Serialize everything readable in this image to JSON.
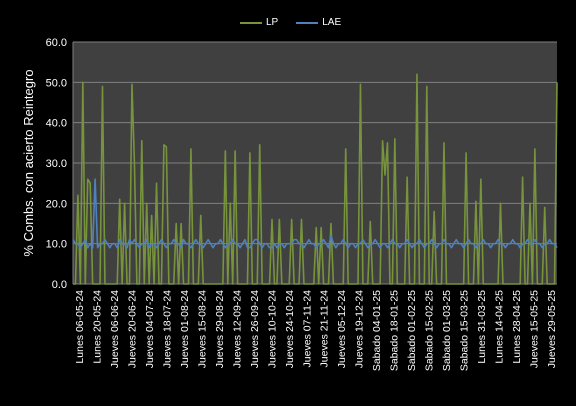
{
  "colors": {
    "plot_bg": "#404040",
    "grid": "#808080",
    "lp": "#77933C",
    "lae": "#4F81BD",
    "text": "#ffffff"
  },
  "chart_data": {
    "type": "line",
    "ylabel": "% Combs. con acierto Reintegro",
    "xlabel": "",
    "title": "",
    "ylim": [
      0,
      60
    ],
    "yticks": [
      "0.0",
      "10.0",
      "20.0",
      "30.0",
      "40.0",
      "50.0",
      "60.0"
    ],
    "grid": "horizontal",
    "legend_position": "top",
    "x_tick_labels": [
      "Lunes 06-05-24",
      "Lunes 20-05-24",
      "Jueves 06-06-24",
      "Jueves 20-06-24",
      "Jueves 04-07-24",
      "Jueves 18-07-24",
      "Jueves 01-08-24",
      "Jueves 15-08-24",
      "Jueves 29-08-24",
      "Jueves 12-09-24",
      "Jueves 26-09-24",
      "Jueves 10-10-24",
      "Jueves 24-10-24",
      "Jueves 07-11-24",
      "Jueves 21-11-24",
      "Jueves 05-12-24",
      "Jueves 19-12-24",
      "Sabado 04-01-25",
      "Sabado 18-01-25",
      "Sabado 01-02-25",
      "Sabado 15-02-25",
      "Sabado 01-03-25",
      "Sabado 15-03-25",
      "Lunes 31-03-25",
      "Lunes 14-04-25",
      "Lunes 28-04-25",
      "Jueves 15-05-25",
      "Jueves 29-05-25"
    ],
    "series": [
      {
        "name": "LP",
        "values": [
          0,
          0,
          22,
          0,
          50,
          0,
          26,
          25,
          0,
          0,
          0,
          0,
          49,
          0,
          0,
          0,
          0,
          0,
          0,
          21,
          0,
          20,
          0,
          0,
          49.5,
          30,
          0,
          0,
          35.5,
          0,
          20,
          0,
          17,
          0,
          25,
          0,
          0,
          34.5,
          34,
          0,
          0,
          0,
          15,
          0,
          15,
          0,
          0,
          0,
          33.5,
          0,
          0,
          0,
          17,
          0,
          0,
          0,
          0,
          0,
          0,
          0,
          0,
          0,
          33,
          0,
          20,
          0,
          33,
          0,
          0,
          0,
          0,
          0,
          32.5,
          0,
          0,
          0,
          34.5,
          0,
          0,
          0,
          0,
          16,
          0,
          0,
          16,
          0,
          0,
          0,
          0,
          16,
          0,
          0,
          0,
          16,
          0,
          0,
          0,
          0,
          0,
          14,
          0,
          14,
          0,
          0,
          0,
          15,
          0,
          0,
          0,
          0,
          0,
          33.5,
          0,
          0,
          0,
          0,
          0,
          49.5,
          0,
          0,
          0,
          15.5,
          0,
          0,
          0,
          0,
          35.5,
          27,
          35,
          0,
          0,
          36,
          0,
          0,
          0,
          0,
          26.5,
          0,
          0,
          0,
          52,
          0,
          0,
          0,
          49,
          0,
          0,
          18,
          0,
          0,
          0,
          35,
          0,
          0,
          0,
          0,
          0,
          0,
          0,
          0,
          32.5,
          0,
          0,
          0,
          20.5,
          0,
          26,
          0,
          0,
          0,
          0,
          0,
          0,
          0,
          20,
          0,
          0,
          0,
          0,
          0,
          0,
          0,
          0,
          26.5,
          0,
          0,
          20,
          0,
          33.5,
          0,
          0,
          0,
          19,
          0,
          0,
          0,
          0,
          50
        ]
      },
      {
        "name": "LAE",
        "values": [
          11,
          10,
          10,
          9,
          10,
          11,
          9,
          10,
          9,
          26,
          9,
          10,
          10,
          11,
          10,
          9,
          10,
          10,
          9,
          11,
          10,
          10,
          9,
          11,
          10,
          11,
          10,
          9,
          10,
          10,
          11,
          9,
          10,
          10,
          9,
          10,
          11,
          10,
          9,
          10,
          10,
          11,
          10,
          10,
          9,
          11,
          10,
          10,
          9,
          10,
          11,
          10,
          10,
          9,
          10,
          11,
          10,
          9,
          10,
          10,
          11,
          10,
          9,
          10,
          10,
          11,
          10,
          10,
          9,
          10,
          11,
          9,
          9,
          10,
          11,
          11,
          10,
          9,
          10,
          10,
          9,
          9,
          10,
          9,
          10,
          10,
          9,
          10,
          10,
          10,
          11,
          11,
          10,
          10,
          9,
          10,
          11,
          10,
          10,
          9,
          10,
          10,
          11,
          10,
          9,
          12,
          10,
          9,
          10,
          10,
          11,
          10,
          9,
          10,
          10,
          9,
          10,
          10,
          11,
          10,
          9,
          10,
          10,
          11,
          10,
          9,
          10,
          10,
          9,
          10,
          11,
          10,
          10,
          9,
          10,
          10,
          11,
          10,
          9,
          10,
          10,
          11,
          10,
          9,
          10,
          10,
          11,
          10,
          9,
          10,
          10,
          11,
          10,
          10,
          9,
          10,
          11,
          10,
          10,
          9,
          10,
          11,
          10,
          10,
          9,
          10,
          10,
          11,
          10,
          10,
          9,
          10,
          10,
          11,
          10,
          10,
          9,
          10,
          10,
          11,
          10,
          10,
          9,
          10,
          10,
          11,
          10,
          10,
          11,
          10,
          10,
          9,
          10,
          10,
          11,
          10,
          10,
          9
        ]
      }
    ]
  }
}
